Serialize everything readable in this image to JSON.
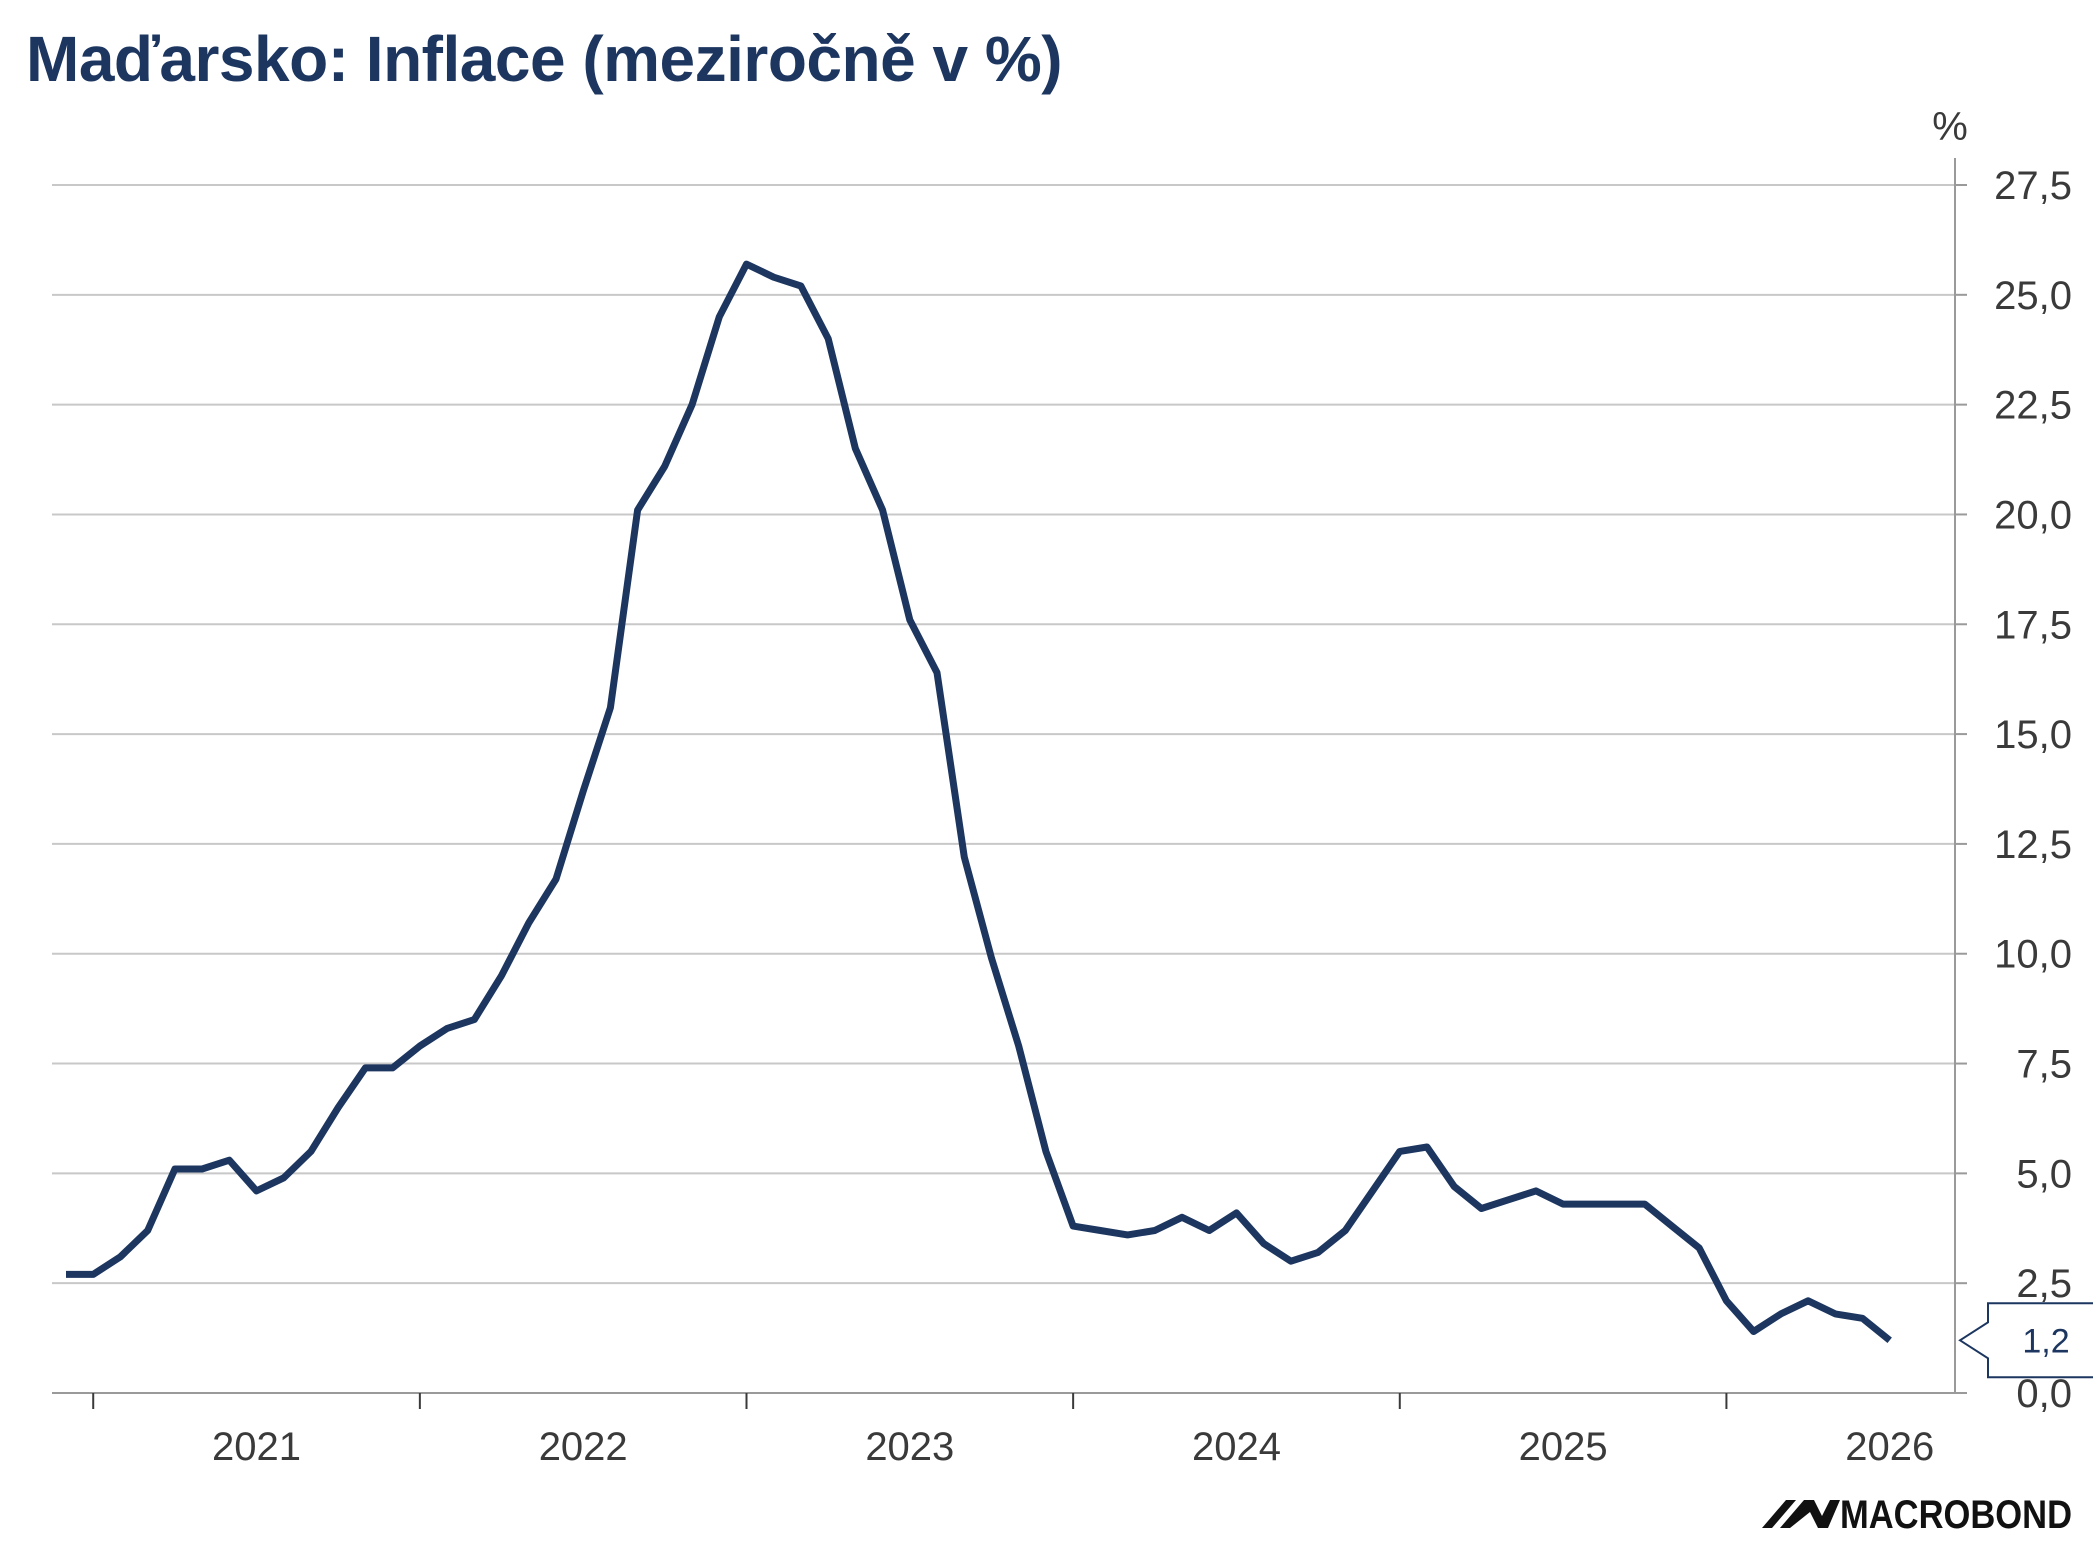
{
  "chart_data": {
    "type": "line",
    "title": "Maďarsko: Inflace (meziročně v %)",
    "unit_label": "%",
    "ylim": [
      0,
      27.5
    ],
    "y_ticks": [
      "0,0",
      "2,5",
      "5,0",
      "7,5",
      "10,0",
      "12,5",
      "15,0",
      "17,5",
      "20,0",
      "22,5",
      "25,0",
      "27,5"
    ],
    "x_tick_labels": [
      "2021",
      "2022",
      "2023",
      "2024",
      "2025",
      "2026"
    ],
    "x_start": "2020-12",
    "grid": true,
    "y_axis_position": "right",
    "line_color": "#1c3660",
    "last_value_label": "1,2",
    "series": [
      {
        "values": [
          2.7,
          2.7,
          3.1,
          3.7,
          5.1,
          5.1,
          5.3,
          4.6,
          4.9,
          5.5,
          6.5,
          7.4,
          7.4,
          7.9,
          8.3,
          8.5,
          9.5,
          10.7,
          11.7,
          13.7,
          15.6,
          20.1,
          21.1,
          22.5,
          24.5,
          25.7,
          25.4,
          25.2,
          24.0,
          21.5,
          20.1,
          17.6,
          16.4,
          12.2,
          9.9,
          7.9,
          5.5,
          3.8,
          3.7,
          3.6,
          3.7,
          4.0,
          3.7,
          4.1,
          3.4,
          3.0,
          3.2,
          3.7,
          4.6,
          5.5,
          5.6,
          4.7,
          4.2,
          4.4,
          4.6,
          4.3,
          4.3,
          4.3,
          4.3,
          3.8,
          3.3,
          2.1,
          1.4,
          1.8,
          2.1,
          1.8,
          1.7,
          1.2
        ]
      }
    ]
  },
  "branding": {
    "logo_text": "MACROBOND"
  }
}
